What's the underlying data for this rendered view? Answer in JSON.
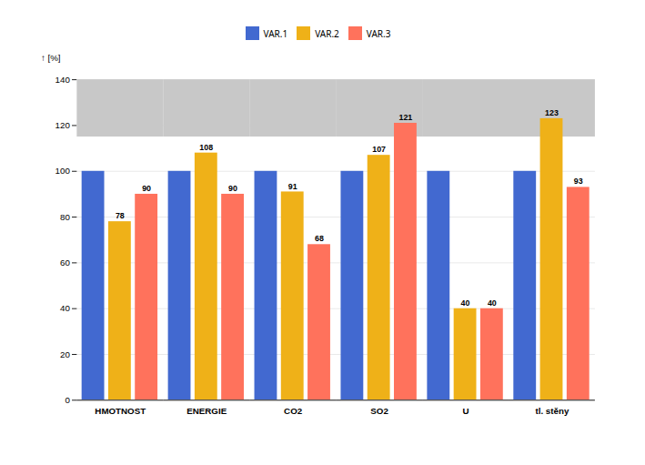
{
  "chart_data": {
    "type": "bar",
    "categories": [
      "HMOTNOST",
      "ENERGIE",
      "CO2",
      "SO2",
      "U",
      "tl. stěny"
    ],
    "series": [
      {
        "name": "VAR.1",
        "values": [
          100,
          100,
          100,
          100,
          100,
          100
        ],
        "data_labels": false
      },
      {
        "name": "VAR.2",
        "values": [
          78,
          108,
          91,
          107,
          40,
          123
        ],
        "data_labels": true
      },
      {
        "name": "VAR.3",
        "values": [
          90,
          90,
          68,
          121,
          40,
          93
        ],
        "data_labels": true
      }
    ],
    "ylabel": "[%]",
    "ylim": [
      0,
      140
    ],
    "yticks": [
      0,
      20,
      40,
      60,
      80,
      100,
      120,
      140
    ],
    "grid": true,
    "legend": "top",
    "shaded_band": {
      "from": 115,
      "to": 140,
      "color": "#c8c8c8"
    }
  }
}
